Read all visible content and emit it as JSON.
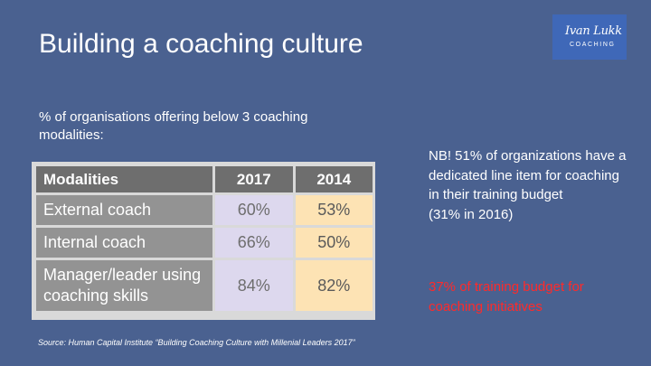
{
  "logo": {
    "script": "Ivan Lukk",
    "sub": "COACHING"
  },
  "title": "Building a coaching culture",
  "subtitle": "% of organisations offering below 3 coaching modalities:",
  "table": {
    "headers": [
      "Modalities",
      "2017",
      "2014"
    ],
    "rows": [
      {
        "modality": "External coach",
        "y2017": "60%",
        "y2014": "53%"
      },
      {
        "modality": "Internal coach",
        "y2017": "66%",
        "y2014": "50%"
      },
      {
        "modality": "Manager/leader using coaching skills",
        "y2017": "84%",
        "y2014": "82%"
      }
    ]
  },
  "nb_note": {
    "main": "NB! 51% of organizations have a dedicated line item for coaching in their training budget",
    "paren": "(31% in 2016)"
  },
  "budget_note": "37% of training budget for coaching initiatives",
  "source": "Source: Human Capital Institute “Building Coaching Culture with Millenial Leaders 2017”",
  "colors": {
    "background": "#4a6190",
    "highlight_red": "#ff2a2a",
    "header_gray": "#6e6e6e",
    "col_2017": "#ddd8ee",
    "col_2014": "#fde3b4"
  }
}
